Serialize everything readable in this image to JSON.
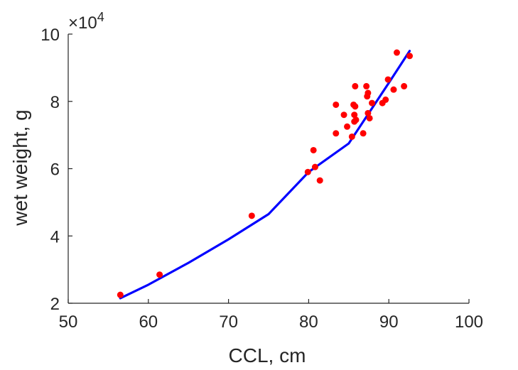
{
  "chart_data": {
    "type": "scatter",
    "xlabel": "CCL, cm",
    "ylabel": "wet weight, g",
    "xlim": [
      50,
      100
    ],
    "ylim": [
      2,
      10
    ],
    "y_multiplier_label": "×10",
    "y_multiplier_exponent": "4",
    "grid": false,
    "xticks": [
      50,
      60,
      70,
      80,
      90,
      100
    ],
    "yticks": [
      2,
      4,
      6,
      8,
      10
    ],
    "colors": {
      "points": "#ff0000",
      "fit": "#0000ff",
      "axis": "#262626"
    },
    "series": [
      {
        "kind": "points",
        "x": [
          56.5,
          61.4,
          72.9,
          79.9,
          80.6,
          80.8,
          81.4,
          83.4,
          83.4,
          84.4,
          84.8,
          85.4,
          85.6,
          85.7,
          85.7,
          85.8,
          85.8,
          85.9,
          86.8,
          87.2,
          87.3,
          87.4,
          87.4,
          87.6,
          87.9,
          89.2,
          89.6,
          89.9,
          90.6,
          91.0,
          91.9,
          92.6
        ],
        "y": [
          2.25,
          2.85,
          4.6,
          5.9,
          6.55,
          6.05,
          5.65,
          7.05,
          7.9,
          7.6,
          7.25,
          6.95,
          7.9,
          7.6,
          7.4,
          7.85,
          8.45,
          7.45,
          7.05,
          8.45,
          8.15,
          8.25,
          7.65,
          7.5,
          7.95,
          7.95,
          8.05,
          8.65,
          8.35,
          9.45,
          8.45,
          9.35
        ]
      },
      {
        "kind": "fit",
        "x": [
          56.5,
          60,
          65,
          70,
          75,
          80,
          85,
          90,
          92.6
        ],
        "y": [
          2.15,
          2.55,
          3.2,
          3.9,
          4.65,
          5.9,
          6.75,
          8.55,
          9.5
        ]
      }
    ]
  }
}
